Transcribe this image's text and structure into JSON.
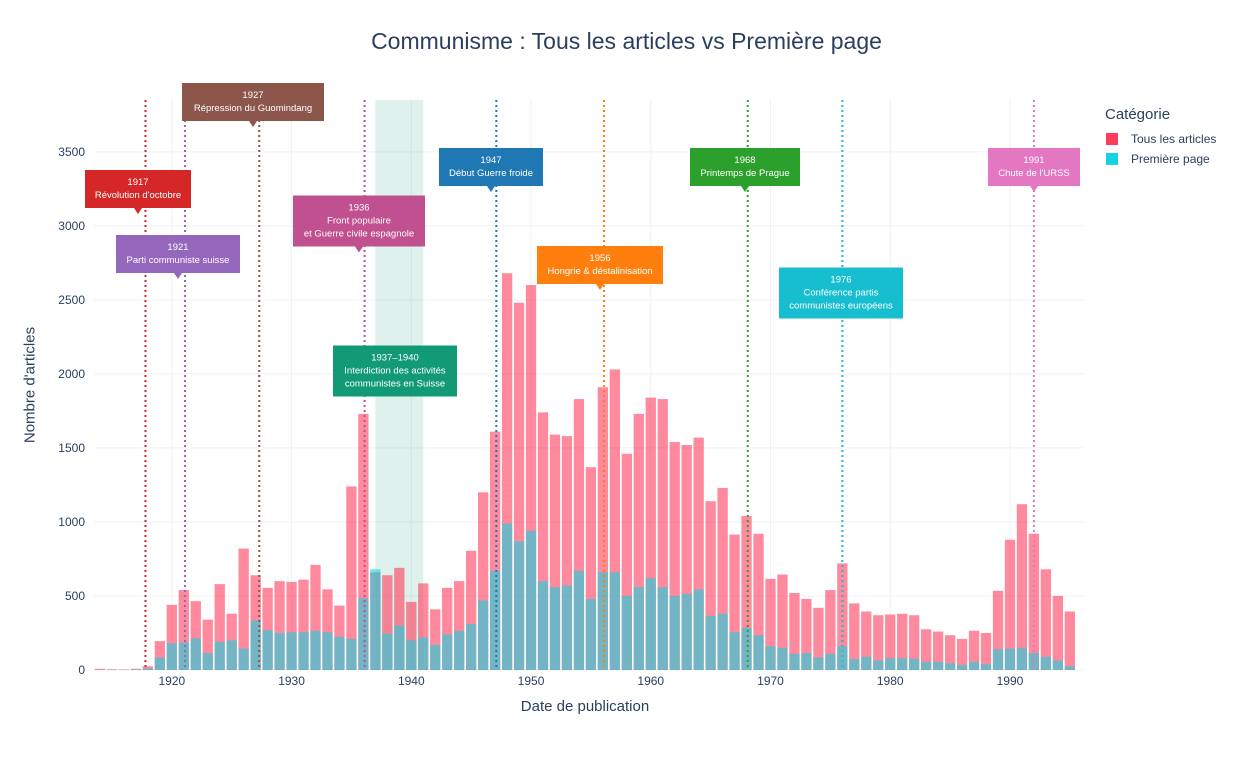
{
  "title": "Communisme : Tous les articles vs Première page",
  "legend": {
    "title": "Catégorie",
    "items": [
      {
        "label": "Tous les articles",
        "color": "#ff3b5c"
      },
      {
        "label": "Première page",
        "color": "#17d2e0"
      }
    ]
  },
  "chart_data": {
    "type": "bar",
    "barmode": "overlay",
    "xlabel": "Date de publication",
    "ylabel": "Nombre d'articles",
    "xlim": [
      1913.5,
      1996.1
    ],
    "ylim": [
      0,
      3850
    ],
    "x_ticks": [
      1920,
      1930,
      1940,
      1950,
      1960,
      1970,
      1980,
      1990
    ],
    "y_ticks": [
      0,
      500,
      1000,
      1500,
      2000,
      2500,
      3000,
      3500
    ],
    "grid": true,
    "legend_position": "top-right",
    "x": [
      1914,
      1915,
      1916,
      1917,
      1918,
      1919,
      1920,
      1921,
      1922,
      1923,
      1924,
      1925,
      1926,
      1927,
      1928,
      1929,
      1930,
      1931,
      1932,
      1933,
      1934,
      1935,
      1936,
      1937,
      1938,
      1939,
      1940,
      1941,
      1942,
      1943,
      1944,
      1945,
      1946,
      1947,
      1948,
      1949,
      1950,
      1951,
      1952,
      1953,
      1954,
      1955,
      1956,
      1957,
      1958,
      1959,
      1960,
      1961,
      1962,
      1963,
      1964,
      1965,
      1966,
      1967,
      1968,
      1969,
      1970,
      1971,
      1972,
      1973,
      1974,
      1975,
      1976,
      1977,
      1978,
      1979,
      1980,
      1981,
      1982,
      1983,
      1984,
      1985,
      1986,
      1987,
      1988,
      1989,
      1990,
      1991,
      1992,
      1993,
      1994,
      1995
    ],
    "series": [
      {
        "name": "Tous les articles",
        "color": "#ff3b5c",
        "values": [
          8,
          5,
          4,
          8,
          25,
          195,
          440,
          540,
          465,
          340,
          580,
          380,
          820,
          640,
          555,
          600,
          595,
          610,
          710,
          545,
          435,
          1240,
          1730,
          660,
          640,
          690,
          460,
          585,
          410,
          555,
          600,
          805,
          1200,
          1610,
          2680,
          2480,
          2600,
          1740,
          1590,
          1580,
          1830,
          1370,
          1910,
          2030,
          1460,
          1730,
          1840,
          1830,
          1540,
          1520,
          1570,
          1140,
          1230,
          915,
          1040,
          920,
          615,
          645,
          520,
          480,
          420,
          540,
          720,
          450,
          395,
          370,
          375,
          380,
          370,
          275,
          260,
          235,
          210,
          265,
          250,
          535,
          880,
          1120,
          920,
          680,
          500,
          395
        ]
      },
      {
        "name": "Première page",
        "color": "#17d2e0",
        "values": [
          2,
          2,
          1,
          3,
          10,
          85,
          180,
          185,
          215,
          115,
          190,
          200,
          145,
          335,
          270,
          250,
          255,
          255,
          265,
          255,
          225,
          210,
          485,
          680,
          245,
          300,
          200,
          220,
          170,
          240,
          265,
          310,
          470,
          670,
          990,
          870,
          940,
          600,
          560,
          570,
          670,
          480,
          660,
          660,
          500,
          560,
          620,
          560,
          500,
          515,
          545,
          365,
          380,
          255,
          285,
          235,
          160,
          150,
          110,
          115,
          85,
          110,
          160,
          75,
          90,
          65,
          80,
          80,
          75,
          55,
          55,
          45,
          35,
          55,
          40,
          140,
          145,
          150,
          115,
          90,
          65,
          25
        ]
      }
    ],
    "highlight_span": {
      "x0": 1937,
      "x1": 1941
    },
    "events": [
      {
        "x": 1917.8,
        "color": "#d62728",
        "label_year": "1917",
        "label_text": "Révolution d'octobre",
        "y": 3175
      },
      {
        "x": 1921.1,
        "color": "#9467bd",
        "label_year": "1921",
        "label_text": "Parti communiste suisse",
        "y": 2730
      },
      {
        "x": 1927.3,
        "color": "#8c564b",
        "label_year": "1927",
        "label_text": "Répression du Guomindang",
        "y": 3770
      },
      {
        "x": 1936.1,
        "color": "#c0508f",
        "label_year": "1936",
        "label_text": "Front populaire\net Guerre civile espagnole",
        "y": 2890
      },
      {
        "x": 1947.1,
        "color": "#1f77b4",
        "label_year": "1947",
        "label_text": "Début Guerre froide",
        "y": 3315
      },
      {
        "x": 1956.1,
        "color": "#ff7f0e",
        "label_year": "1956",
        "label_text": "Hongrie & déstalinisation",
        "y": 2600
      },
      {
        "x": 1968.1,
        "color": "#2ca02c",
        "label_year": "1968",
        "label_text": "Printemps de Prague",
        "y": 3315
      },
      {
        "x": 1976.0,
        "color": "#17becf",
        "label_year": "1976",
        "label_text": "Conférence partis\ncommunistes européens",
        "y": null
      },
      {
        "x": 1992.0,
        "color": "#e377c2",
        "label_year": "1991",
        "label_text": "Chute de l'URSS",
        "y": 3315
      }
    ],
    "span_label": {
      "label_year": "1937–1940",
      "label_text": "Interdiction des activités\ncommunistes en Suisse",
      "color": "#129a77"
    }
  }
}
